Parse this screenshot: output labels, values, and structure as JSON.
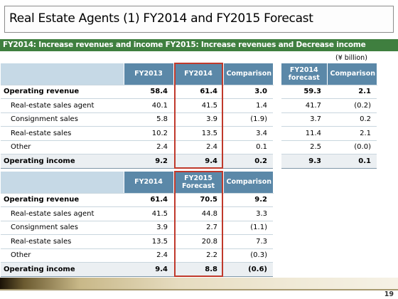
{
  "title": "Real Estate Agents (1) FY2014 and FY2015 Forecast",
  "subtitle": "FY2014: Increase revenues and income FY2015: Increase revenues and Decrease income",
  "unit": "(¥ billion)",
  "page_number": "19",
  "table1": {
    "headers": [
      "FY2013",
      "FY2014",
      "Comparison"
    ],
    "rows": [
      {
        "label": "Operating revenue",
        "values": [
          "58.4",
          "61.4",
          "3.0"
        ]
      },
      {
        "label": "Real-estate sales agent",
        "values": [
          "40.1",
          "41.5",
          "1.4"
        ]
      },
      {
        "label": "Consignment sales",
        "values": [
          "5.8",
          "3.9",
          "(1.9)"
        ]
      },
      {
        "label": "Real-estate sales",
        "values": [
          "10.2",
          "13.5",
          "3.4"
        ]
      },
      {
        "label": "Other",
        "values": [
          "2.4",
          "2.4",
          "0.1"
        ]
      },
      {
        "label": "Operating income",
        "values": [
          "9.2",
          "9.4",
          "0.2"
        ]
      }
    ]
  },
  "table2": {
    "headers": [
      "FY2014\nforecast",
      "Comparison"
    ],
    "rows": [
      {
        "values": [
          "59.3",
          "2.1"
        ]
      },
      {
        "values": [
          "41.7",
          "(0.2)"
        ]
      },
      {
        "values": [
          "3.7",
          "0.2"
        ]
      },
      {
        "values": [
          "11.4",
          "2.1"
        ]
      },
      {
        "values": [
          "2.5",
          "(0.0)"
        ]
      },
      {
        "values": [
          "9.3",
          "0.1"
        ]
      }
    ]
  },
  "table3": {
    "headers": [
      "FY2014",
      "FY2015\nForecast",
      "Comparison"
    ],
    "rows": [
      {
        "label": "Operating revenue",
        "values": [
          "61.4",
          "70.5",
          "9.2"
        ]
      },
      {
        "label": "Real-estate sales agent",
        "values": [
          "41.5",
          "44.8",
          "3.3"
        ]
      },
      {
        "label": "Consignment sales",
        "values": [
          "3.9",
          "2.7",
          "(1.1)"
        ]
      },
      {
        "label": "Real-estate sales",
        "values": [
          "13.5",
          "20.8",
          "7.3"
        ]
      },
      {
        "label": "Other",
        "values": [
          "2.4",
          "2.2",
          "(0.3)"
        ]
      },
      {
        "label": "Operating income",
        "values": [
          "9.4",
          "8.8",
          "(0.6)"
        ]
      }
    ]
  }
}
